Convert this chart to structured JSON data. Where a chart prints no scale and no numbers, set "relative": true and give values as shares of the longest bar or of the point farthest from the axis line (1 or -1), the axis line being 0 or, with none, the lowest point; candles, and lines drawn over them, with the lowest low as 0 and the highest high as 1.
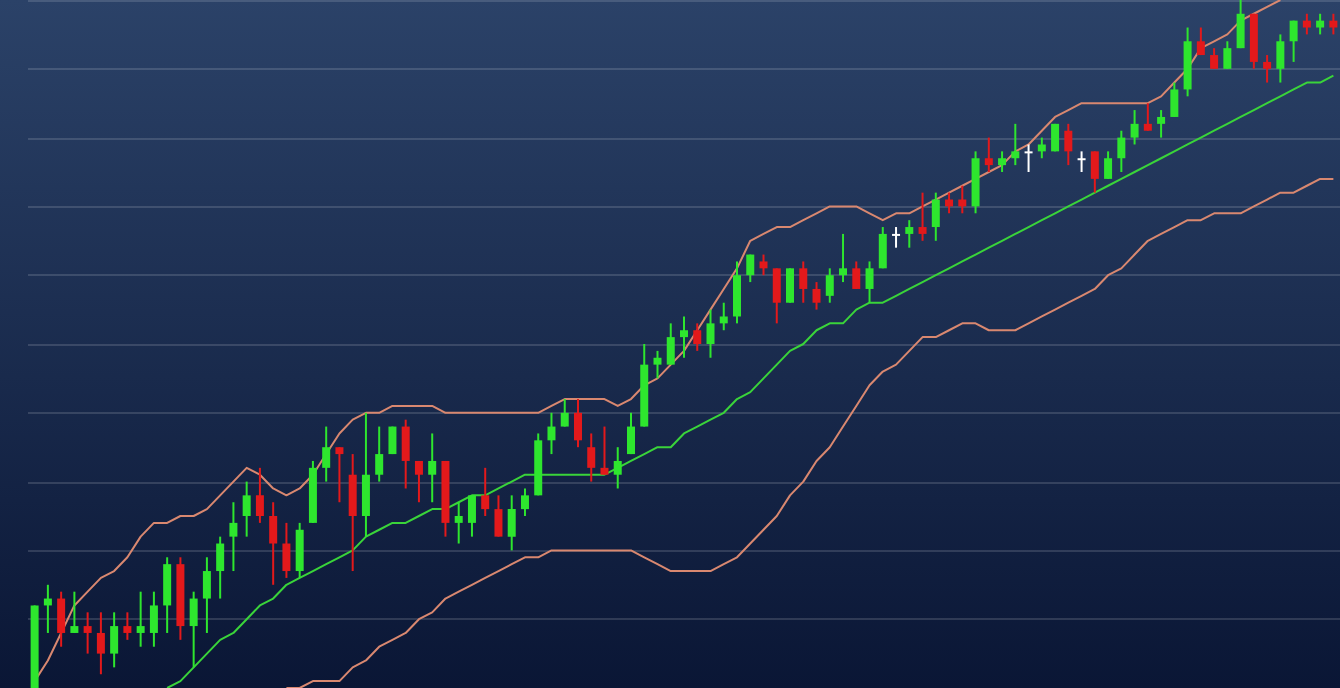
{
  "chart_data": [
    {
      "type": "candlestick",
      "relative": true,
      "categories": [
        null,
        null,
        null,
        null,
        null,
        null,
        null,
        null,
        null,
        null,
        null,
        null,
        null,
        null,
        null,
        null,
        null,
        null,
        null,
        null,
        null,
        null,
        null,
        null,
        null,
        null,
        null,
        null,
        null,
        null,
        null,
        null,
        null,
        null,
        null,
        null,
        null,
        null,
        null,
        null,
        null,
        null,
        null,
        null,
        null,
        null,
        null,
        null,
        null,
        null,
        null,
        null,
        null,
        null,
        null,
        null,
        null,
        null,
        null,
        null,
        null,
        null,
        null,
        null,
        null,
        null,
        null,
        null,
        null,
        null,
        null,
        null,
        null,
        null,
        null,
        null,
        null,
        null,
        null,
        null,
        null,
        null,
        null,
        null,
        null,
        null,
        null,
        null,
        null,
        null,
        null,
        null,
        null,
        null,
        null,
        null,
        null,
        null,
        null
      ],
      "ohlc": [
        [
          0,
          0.12,
          0,
          0.12
        ],
        [
          0.12,
          0.15,
          0.08,
          0.13
        ],
        [
          0.13,
          0.14,
          0.06,
          0.08
        ],
        [
          0.08,
          0.14,
          0.08,
          0.09
        ],
        [
          0.09,
          0.11,
          0.05,
          0.08
        ],
        [
          0.08,
          0.11,
          0.02,
          0.05
        ],
        [
          0.05,
          0.11,
          0.03,
          0.09
        ],
        [
          0.09,
          0.11,
          0.07,
          0.08
        ],
        [
          0.08,
          0.14,
          0.06,
          0.09
        ],
        [
          0.08,
          0.14,
          0.06,
          0.12
        ],
        [
          0.12,
          0.19,
          0.08,
          0.18
        ],
        [
          0.18,
          0.19,
          0.07,
          0.09
        ],
        [
          0.09,
          0.14,
          0.03,
          0.13
        ],
        [
          0.13,
          0.19,
          0.08,
          0.17
        ],
        [
          0.17,
          0.22,
          0.13,
          0.21
        ],
        [
          0.22,
          0.27,
          0.17,
          0.24
        ],
        [
          0.25,
          0.3,
          0.22,
          0.28
        ],
        [
          0.28,
          0.32,
          0.24,
          0.25
        ],
        [
          0.25,
          0.27,
          0.15,
          0.21
        ],
        [
          0.21,
          0.24,
          0.16,
          0.17
        ],
        [
          0.17,
          0.24,
          0.16,
          0.23
        ],
        [
          0.24,
          0.33,
          0.24,
          0.32
        ],
        [
          0.32,
          0.38,
          0.3,
          0.35
        ],
        [
          0.35,
          0.35,
          0.27,
          0.34
        ],
        [
          0.31,
          0.34,
          0.17,
          0.25
        ],
        [
          0.25,
          0.4,
          0.22,
          0.31
        ],
        [
          0.31,
          0.38,
          0.3,
          0.34
        ],
        [
          0.34,
          0.38,
          0.34,
          0.38
        ],
        [
          0.38,
          0.39,
          0.29,
          0.33
        ],
        [
          0.33,
          0.33,
          0.27,
          0.31
        ],
        [
          0.31,
          0.37,
          0.27,
          0.33
        ],
        [
          0.33,
          0.33,
          0.22,
          0.24
        ],
        [
          0.24,
          0.27,
          0.21,
          0.25
        ],
        [
          0.24,
          0.28,
          0.22,
          0.28
        ],
        [
          0.28,
          0.32,
          0.25,
          0.26
        ],
        [
          0.26,
          0.28,
          0.22,
          0.22
        ],
        [
          0.22,
          0.28,
          0.2,
          0.26
        ],
        [
          0.26,
          0.29,
          0.25,
          0.28
        ],
        [
          0.28,
          0.37,
          0.28,
          0.36
        ],
        [
          0.36,
          0.4,
          0.34,
          0.38
        ],
        [
          0.38,
          0.42,
          0.38,
          0.4
        ],
        [
          0.4,
          0.42,
          0.35,
          0.36
        ],
        [
          0.35,
          0.37,
          0.3,
          0.32
        ],
        [
          0.32,
          0.38,
          0.31,
          0.31
        ],
        [
          0.31,
          0.35,
          0.29,
          0.33
        ],
        [
          0.34,
          0.4,
          0.34,
          0.38
        ],
        [
          0.38,
          0.5,
          0.38,
          0.47
        ],
        [
          0.47,
          0.49,
          0.45,
          0.48
        ],
        [
          0.47,
          0.53,
          0.47,
          0.51
        ],
        [
          0.51,
          0.54,
          0.48,
          0.52
        ],
        [
          0.52,
          0.53,
          0.49,
          0.5
        ],
        [
          0.5,
          0.55,
          0.48,
          0.53
        ],
        [
          0.53,
          0.56,
          0.52,
          0.54
        ],
        [
          0.54,
          0.62,
          0.53,
          0.6
        ],
        [
          0.6,
          0.63,
          0.59,
          0.63
        ],
        [
          0.62,
          0.63,
          0.6,
          0.61
        ],
        [
          0.61,
          0.61,
          0.53,
          0.56
        ],
        [
          0.56,
          0.61,
          0.56,
          0.61
        ],
        [
          0.61,
          0.62,
          0.56,
          0.58
        ],
        [
          0.58,
          0.59,
          0.55,
          0.56
        ],
        [
          0.57,
          0.61,
          0.56,
          0.6
        ],
        [
          0.6,
          0.66,
          0.59,
          0.61
        ],
        [
          0.61,
          0.62,
          0.58,
          0.58
        ],
        [
          0.58,
          0.62,
          0.56,
          0.61
        ],
        [
          0.61,
          0.67,
          0.61,
          0.66
        ],
        [
          0.66,
          0.67,
          0.64,
          0.66
        ],
        [
          0.66,
          0.68,
          0.64,
          0.67
        ],
        [
          0.67,
          0.72,
          0.65,
          0.66
        ],
        [
          0.67,
          0.72,
          0.65,
          0.71
        ],
        [
          0.71,
          0.72,
          0.69,
          0.7
        ],
        [
          0.71,
          0.73,
          0.69,
          0.7
        ],
        [
          0.7,
          0.78,
          0.69,
          0.77
        ],
        [
          0.77,
          0.8,
          0.75,
          0.76
        ],
        [
          0.76,
          0.78,
          0.75,
          0.77
        ],
        [
          0.77,
          0.82,
          0.76,
          0.78
        ],
        [
          0.78,
          0.79,
          0.75,
          0.78
        ],
        [
          0.78,
          0.8,
          0.77,
          0.79
        ],
        [
          0.78,
          0.82,
          0.78,
          0.82
        ],
        [
          0.81,
          0.82,
          0.76,
          0.78
        ],
        [
          0.77,
          0.78,
          0.75,
          0.77
        ],
        [
          0.78,
          0.78,
          0.72,
          0.74
        ],
        [
          0.74,
          0.78,
          0.74,
          0.77
        ],
        [
          0.77,
          0.81,
          0.75,
          0.8
        ],
        [
          0.8,
          0.84,
          0.79,
          0.82
        ],
        [
          0.82,
          0.85,
          0.81,
          0.81
        ],
        [
          0.82,
          0.84,
          0.8,
          0.83
        ],
        [
          0.83,
          0.88,
          0.83,
          0.87
        ],
        [
          0.87,
          0.96,
          0.86,
          0.94
        ],
        [
          0.94,
          0.96,
          0.92,
          0.92
        ],
        [
          0.92,
          0.93,
          0.9,
          0.9
        ],
        [
          0.9,
          0.94,
          0.9,
          0.93
        ],
        [
          0.93,
          1,
          0.93,
          0.98
        ],
        [
          0.98,
          0.98,
          0.9,
          0.91
        ],
        [
          0.91,
          0.92,
          0.88,
          0.9
        ],
        [
          0.9,
          0.95,
          0.88,
          0.94
        ],
        [
          0.94,
          0.97,
          0.91,
          0.97
        ],
        [
          0.97,
          0.98,
          0.95,
          0.96
        ],
        [
          0.96,
          0.98,
          0.95,
          0.97
        ],
        [
          0.97,
          0.98,
          0.95,
          0.96
        ]
      ],
      "colors": [
        "#2ee62e",
        "#2ee62e",
        "#e3191b",
        "#2ee62e",
        "#e3191b",
        "#e3191b",
        "#2ee62e",
        "#e3191b",
        "#2ee62e",
        "#2ee62e",
        "#2ee62e",
        "#e3191b",
        "#2ee62e",
        "#2ee62e",
        "#2ee62e",
        "#2ee62e",
        "#2ee62e",
        "#e3191b",
        "#e3191b",
        "#e3191b",
        "#2ee62e",
        "#2ee62e",
        "#2ee62e",
        "#e3191b",
        "#e3191b",
        "#2ee62e",
        "#2ee62e",
        "#2ee62e",
        "#e3191b",
        "#e3191b",
        "#2ee62e",
        "#e3191b",
        "#2ee62e",
        "#2ee62e",
        "#e3191b",
        "#e3191b",
        "#2ee62e",
        "#2ee62e",
        "#2ee62e",
        "#2ee62e",
        "#2ee62e",
        "#e3191b",
        "#e3191b",
        "#e3191b",
        "#2ee62e",
        "#2ee62e",
        "#2ee62e",
        "#2ee62e",
        "#2ee62e",
        "#2ee62e",
        "#e3191b",
        "#2ee62e",
        "#2ee62e",
        "#2ee62e",
        "#2ee62e",
        "#e3191b",
        "#e3191b",
        "#2ee62e",
        "#e3191b",
        "#e3191b",
        "#2ee62e",
        "#2ee62e",
        "#e3191b",
        "#2ee62e",
        "#2ee62e",
        "#ffffff",
        "#2ee62e",
        "#e3191b",
        "#2ee62e",
        "#e3191b",
        "#e3191b",
        "#2ee62e",
        "#e3191b",
        "#2ee62e",
        "#2ee62e",
        "#ffffff",
        "#2ee62e",
        "#2ee62e",
        "#e3191b",
        "#ffffff",
        "#e3191b",
        "#2ee62e",
        "#2ee62e",
        "#2ee62e",
        "#e3191b",
        "#2ee62e",
        "#2ee62e",
        "#2ee62e",
        "#e3191b",
        "#e3191b",
        "#2ee62e",
        "#2ee62e",
        "#e3191b",
        "#e3191b",
        "#2ee62e",
        "#2ee62e",
        "#e3191b",
        "#2ee62e",
        "#e3191b"
      ]
    },
    {
      "type": "line",
      "relative": true,
      "grid": "y",
      "categories": [
        null,
        null,
        null,
        null,
        null,
        null,
        null,
        null,
        null,
        null,
        null,
        null,
        null,
        null,
        null,
        null,
        null,
        null,
        null,
        null,
        null,
        null,
        null,
        null,
        null,
        null,
        null,
        null,
        null,
        null,
        null,
        null,
        null,
        null,
        null,
        null,
        null,
        null,
        null,
        null,
        null,
        null,
        null,
        null,
        null,
        null,
        null,
        null,
        null,
        null,
        null,
        null,
        null,
        null,
        null,
        null,
        null,
        null,
        null,
        null,
        null,
        null,
        null,
        null,
        null,
        null,
        null,
        null,
        null,
        null,
        null,
        null,
        null,
        null,
        null,
        null,
        null,
        null,
        null,
        null,
        null,
        null,
        null,
        null,
        null,
        null,
        null,
        null,
        null,
        null,
        null,
        null,
        null,
        null,
        null,
        null,
        null,
        null,
        null
      ],
      "series": [
        {
          "type": "line",
          "color": "#d98870",
          "values": [
            0.01,
            0.04,
            0.08,
            0.12,
            0.14,
            0.16,
            0.17,
            0.19,
            0.22,
            0.24,
            0.24,
            0.25,
            0.25,
            0.26,
            0.28,
            0.3,
            0.32,
            0.31,
            0.29,
            0.28,
            0.29,
            0.31,
            0.34,
            0.37,
            0.39,
            0.4,
            0.4,
            0.41,
            0.41,
            0.41,
            0.41,
            0.4,
            0.4,
            0.4,
            0.4,
            0.4,
            0.4,
            0.4,
            0.4,
            0.41,
            0.42,
            0.42,
            0.42,
            0.42,
            0.41,
            0.42,
            0.44,
            0.45,
            0.47,
            0.49,
            0.52,
            0.55,
            0.58,
            0.61,
            0.65,
            0.66,
            0.67,
            0.67,
            0.68,
            0.69,
            0.7,
            0.7,
            0.7,
            0.69,
            0.68,
            0.69,
            0.69,
            0.7,
            0.71,
            0.72,
            0.73,
            0.74,
            0.75,
            0.76,
            0.78,
            0.79,
            0.81,
            0.83,
            0.84,
            0.85,
            0.85,
            0.85,
            0.85,
            0.85,
            0.85,
            0.86,
            0.88,
            0.9,
            0.93,
            0.94,
            0.95,
            0.97,
            0.98,
            0.99,
            1,
            null,
            null,
            null,
            null
          ]
        },
        {
          "type": "line",
          "color": "#3ad43a",
          "values": [
            null,
            null,
            null,
            null,
            null,
            null,
            null,
            null,
            null,
            null,
            0,
            0.01,
            0.03,
            0.05,
            0.07,
            0.08,
            0.1,
            0.12,
            0.13,
            0.15,
            0.16,
            0.17,
            0.18,
            0.19,
            0.2,
            0.22,
            0.23,
            0.24,
            0.24,
            0.25,
            0.26,
            0.26,
            0.27,
            0.28,
            0.28,
            0.29,
            0.3,
            0.31,
            0.31,
            0.31,
            0.31,
            0.31,
            0.31,
            0.31,
            0.32,
            0.33,
            0.34,
            0.35,
            0.35,
            0.37,
            0.38,
            0.39,
            0.4,
            0.42,
            0.43,
            0.45,
            0.47,
            0.49,
            0.5,
            0.52,
            0.53,
            0.53,
            0.55,
            0.56,
            0.56,
            0.57,
            0.58,
            0.59,
            0.6,
            0.61,
            0.62,
            0.63,
            0.64,
            0.65,
            0.66,
            0.67,
            0.68,
            0.69,
            0.7,
            0.71,
            0.72,
            0.73,
            0.74,
            0.75,
            0.76,
            0.77,
            0.78,
            0.79,
            0.8,
            0.81,
            0.82,
            0.83,
            0.84,
            0.85,
            0.86,
            0.87,
            0.88,
            0.88,
            0.89
          ]
        },
        {
          "type": "line",
          "color": "#d98870",
          "values": [
            null,
            null,
            null,
            null,
            null,
            null,
            null,
            null,
            null,
            null,
            null,
            null,
            null,
            null,
            null,
            null,
            null,
            null,
            null,
            0,
            0,
            0.01,
            0.01,
            0.01,
            0.03,
            0.04,
            0.06,
            0.07,
            0.08,
            0.1,
            0.11,
            0.13,
            0.14,
            0.15,
            0.16,
            0.17,
            0.18,
            0.19,
            0.19,
            0.2,
            0.2,
            0.2,
            0.2,
            0.2,
            0.2,
            0.2,
            0.19,
            0.18,
            0.17,
            0.17,
            0.17,
            0.17,
            0.18,
            0.19,
            0.21,
            0.23,
            0.25,
            0.28,
            0.3,
            0.33,
            0.35,
            0.38,
            0.41,
            0.44,
            0.46,
            0.47,
            0.49,
            0.51,
            0.51,
            0.52,
            0.53,
            0.53,
            0.52,
            0.52,
            0.52,
            0.53,
            0.54,
            0.55,
            0.56,
            0.57,
            0.58,
            0.6,
            0.61,
            0.63,
            0.65,
            0.66,
            0.67,
            0.68,
            0.68,
            0.69,
            0.69,
            0.69,
            0.7,
            0.71,
            0.72,
            0.72,
            0.73,
            0.74,
            0.74
          ]
        }
      ]
    }
  ]
}
